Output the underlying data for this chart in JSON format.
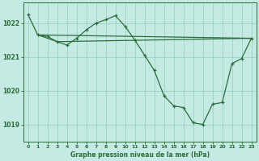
{
  "title": "Graphe pression niveau de la mer (hPa)",
  "background_color": "#c5eae3",
  "grid_color": "#99d4c8",
  "line_color": "#2a6e3a",
  "marker_color": "#2a6e3a",
  "xlim": [
    -0.5,
    23.5
  ],
  "ylim": [
    1018.5,
    1022.6
  ],
  "yticks": [
    1019,
    1020,
    1021,
    1022
  ],
  "xticks": [
    0,
    1,
    2,
    3,
    4,
    5,
    6,
    7,
    8,
    9,
    10,
    11,
    12,
    13,
    14,
    15,
    16,
    17,
    18,
    19,
    20,
    21,
    22,
    23
  ],
  "series_main": {
    "x": [
      0,
      1,
      2,
      3,
      4,
      5,
      6,
      7,
      8,
      9,
      10,
      11,
      12,
      13,
      14,
      15,
      16,
      17,
      18,
      19,
      20,
      21,
      22,
      23
    ],
    "y": [
      1022.25,
      1021.65,
      1021.6,
      1021.45,
      1021.35,
      1021.55,
      1021.8,
      1022.0,
      1022.1,
      1022.22,
      1021.9,
      1021.5,
      1021.05,
      1020.6,
      1019.85,
      1019.55,
      1019.5,
      1019.05,
      1019.0,
      1019.6,
      1019.65,
      1020.8,
      1020.95,
      1021.55
    ]
  },
  "triangle_lines": [
    {
      "x": [
        1,
        23
      ],
      "y": [
        1021.65,
        1021.55
      ]
    },
    {
      "x": [
        3,
        23
      ],
      "y": [
        1021.45,
        1021.55
      ]
    },
    {
      "x": [
        1,
        3
      ],
      "y": [
        1021.65,
        1021.45
      ]
    }
  ],
  "ylabel_ticks_fontsize": 5,
  "xlabel_fontsize": 5.5
}
